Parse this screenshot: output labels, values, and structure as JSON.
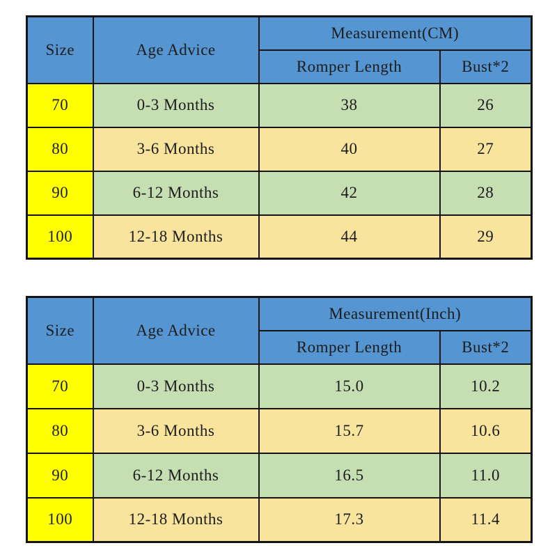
{
  "colors": {
    "header_blue": "#5596d2",
    "size_column_yellow": "#ffff00",
    "row_green": "#c5deb2",
    "row_wheat": "#f9e49e",
    "border_black": "#141414",
    "background": "#ffffff"
  },
  "chart_data": [
    {
      "type": "table",
      "title": "Measurement(CM)",
      "group_header": "Measurement(CM)",
      "columns": [
        "Size",
        "Age Advice",
        "Romper Length",
        "Bust*2"
      ],
      "rows": [
        [
          "70",
          "0-3 Months",
          "38",
          "26"
        ],
        [
          "80",
          "3-6 Months",
          "40",
          "27"
        ],
        [
          "90",
          "6-12 Months",
          "42",
          "28"
        ],
        [
          "100",
          "12-18 Months",
          "44",
          "29"
        ]
      ]
    },
    {
      "type": "table",
      "title": "Measurement(Inch)",
      "group_header": "Measurement(Inch)",
      "columns": [
        "Size",
        "Age Advice",
        "Romper Length",
        "Bust*2"
      ],
      "rows": [
        [
          "70",
          "0-3 Months",
          "15.0",
          "10.2"
        ],
        [
          "80",
          "3-6 Months",
          "15.7",
          "10.6"
        ],
        [
          "90",
          "6-12 Months",
          "16.5",
          "11.0"
        ],
        [
          "100",
          "12-18 Months",
          "17.3",
          "11.4"
        ]
      ]
    }
  ]
}
